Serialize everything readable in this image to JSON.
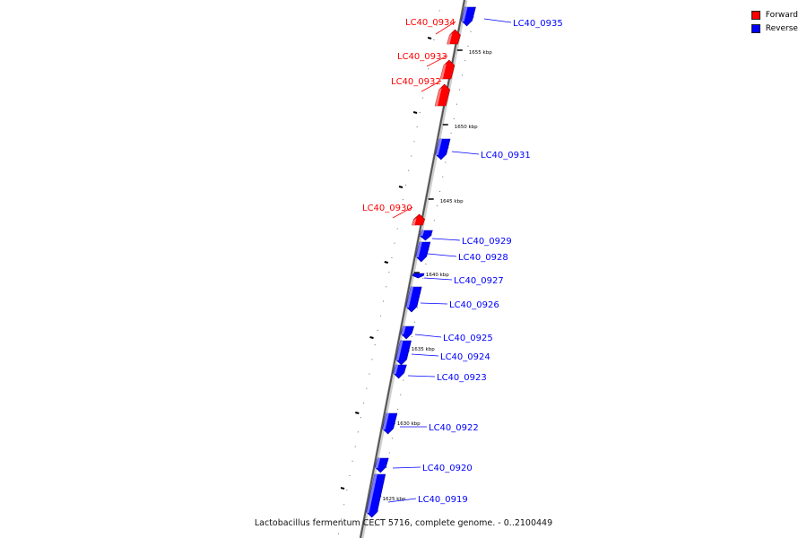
{
  "legend": {
    "forward_label": "Forward",
    "reverse_label": "Reverse",
    "forward_color": "#ff0000",
    "reverse_color": "#0000ff"
  },
  "caption": "Lactobacillus fermentum CECT 5716, complete genome. - 0..2100449",
  "scale_labels": [
    "1655 kbp",
    "1650 kbp",
    "1645 kbp",
    "1640 kbp",
    "1635 kbp",
    "1630 kbp",
    "1625 kbp"
  ],
  "genes": [
    {
      "name": "LC40_0935",
      "strand": "reverse"
    },
    {
      "name": "LC40_0934",
      "strand": "forward"
    },
    {
      "name": "LC40_0933",
      "strand": "forward"
    },
    {
      "name": "LC40_0932",
      "strand": "forward"
    },
    {
      "name": "LC40_0931",
      "strand": "reverse"
    },
    {
      "name": "LC40_0930",
      "strand": "forward"
    },
    {
      "name": "LC40_0929",
      "strand": "reverse"
    },
    {
      "name": "LC40_0928",
      "strand": "reverse"
    },
    {
      "name": "LC40_0927",
      "strand": "reverse"
    },
    {
      "name": "LC40_0926",
      "strand": "reverse"
    },
    {
      "name": "LC40_0925",
      "strand": "reverse"
    },
    {
      "name": "LC40_0924",
      "strand": "reverse"
    },
    {
      "name": "LC40_0923",
      "strand": "reverse"
    },
    {
      "name": "LC40_0922",
      "strand": "reverse"
    },
    {
      "name": "LC40_0920",
      "strand": "reverse"
    },
    {
      "name": "LC40_0919",
      "strand": "reverse"
    }
  ]
}
